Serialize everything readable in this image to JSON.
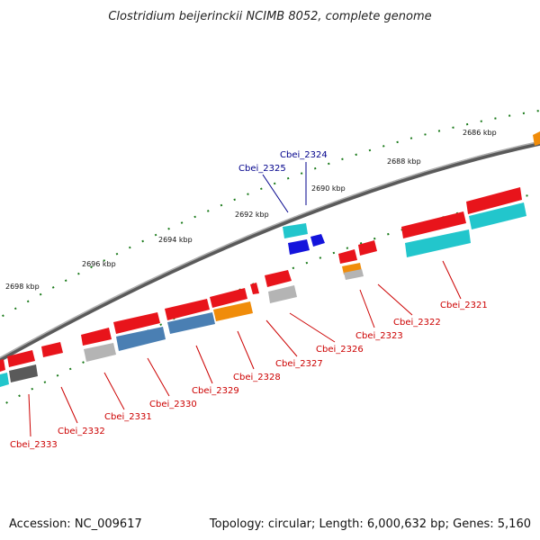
{
  "title": "Clostridium beijerinckii NCIMB 8052, complete genome",
  "footer": {
    "accession": "Accession: NC_009617",
    "summary": "Topology: circular; Length: 6,000,632 bp; Genes: 5,160"
  },
  "ticks": [
    {
      "label": "2686 kbp"
    },
    {
      "label": "2688 kbp"
    },
    {
      "label": "2690 kbp"
    },
    {
      "label": "2692 kbp"
    },
    {
      "label": "2694 kbp"
    },
    {
      "label": "2696 kbp"
    },
    {
      "label": "2698 kbp"
    }
  ],
  "gene_labels": [
    {
      "text": "Cbei_2324",
      "color": "#00008b"
    },
    {
      "text": "Cbei_2325",
      "color": "#00008b"
    },
    {
      "text": "Cbei_2321",
      "color": "#cc0000"
    },
    {
      "text": "Cbei_2322",
      "color": "#cc0000"
    },
    {
      "text": "Cbei_2323",
      "color": "#cc0000"
    },
    {
      "text": "Cbei_2326",
      "color": "#cc0000"
    },
    {
      "text": "Cbei_2327",
      "color": "#cc0000"
    },
    {
      "text": "Cbei_2328",
      "color": "#cc0000"
    },
    {
      "text": "Cbei_2329",
      "color": "#cc0000"
    },
    {
      "text": "Cbei_2330",
      "color": "#cc0000"
    },
    {
      "text": "Cbei_2331",
      "color": "#cc0000"
    },
    {
      "text": "Cbei_2332",
      "color": "#cc0000"
    },
    {
      "text": "Cbei_2333",
      "color": "#cc0000"
    }
  ],
  "colors": {
    "cds": "#e8141b",
    "backbone": "#808080",
    "cyan": "#22c6cc",
    "steelblue": "#4a7fb3",
    "orange": "#f08c0a",
    "grey": "#b4b4b4",
    "darkgrey": "#5a5a5a",
    "blue": "#1414dc",
    "tick": "#1a7a1a"
  }
}
